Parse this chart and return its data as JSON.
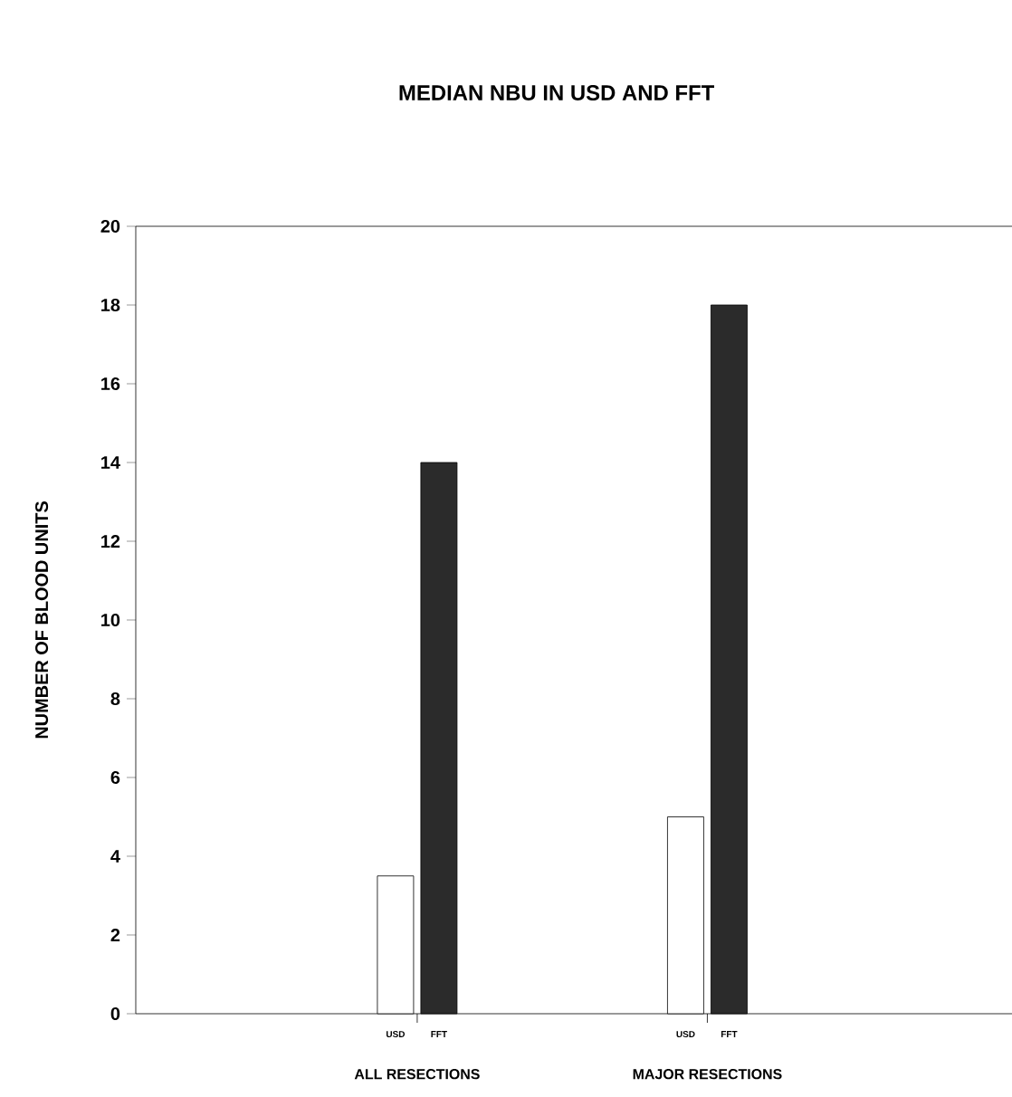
{
  "chart_data": {
    "type": "bar",
    "title": "MEDIAN NBU IN USD AND FFT",
    "ylabel": "NUMBER OF BLOOD UNITS",
    "categories": [
      "ALL RESECTIONS",
      "MAJOR RESECTIONS"
    ],
    "series": [
      {
        "name": "USD",
        "color": "#ffffff",
        "values": [
          3.5,
          5
        ]
      },
      {
        "name": "FFT",
        "color": "#2b2b2b",
        "values": [
          14,
          18
        ]
      }
    ],
    "ylim": [
      0,
      20
    ],
    "yticks": [
      0,
      2,
      4,
      6,
      8,
      10,
      12,
      14,
      16,
      18,
      20
    ],
    "grid": false
  }
}
